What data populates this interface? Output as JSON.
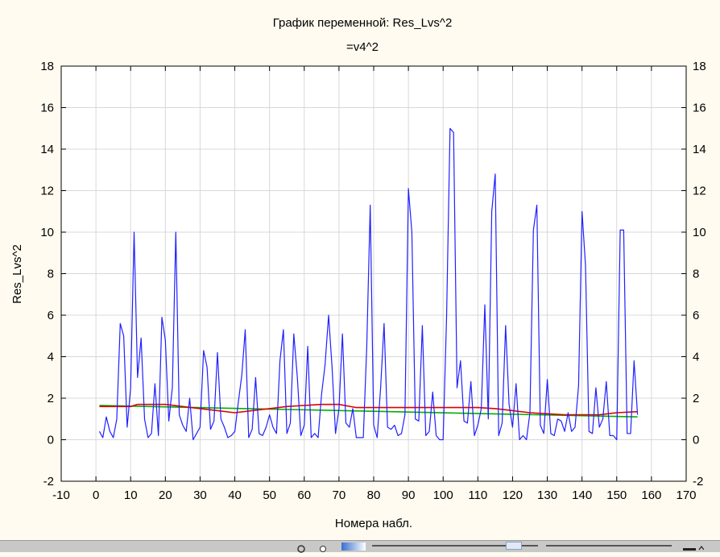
{
  "chart_data": {
    "type": "line",
    "title": "График переменной: Res_Lvs^2",
    "subtitle": "=v4^2",
    "xlabel": "Номера набл.",
    "ylabel": "Res_Lvs^2",
    "xlim": [
      -10,
      170
    ],
    "ylim": [
      -2,
      18
    ],
    "xticks": [
      "-10",
      "0",
      "10",
      "20",
      "30",
      "40",
      "50",
      "60",
      "70",
      "80",
      "90",
      "100",
      "110",
      "120",
      "130",
      "140",
      "150",
      "160",
      "170"
    ],
    "yticks": [
      "-2",
      "0",
      "2",
      "4",
      "6",
      "8",
      "10",
      "12",
      "14",
      "16",
      "18"
    ],
    "grid": true,
    "series": [
      {
        "color": "#2020ff",
        "x": [
          1,
          2,
          3,
          4,
          5,
          6,
          7,
          8,
          9,
          10,
          11,
          12,
          13,
          14,
          15,
          16,
          17,
          18,
          19,
          20,
          21,
          22,
          23,
          24,
          25,
          26,
          27,
          28,
          29,
          30,
          31,
          32,
          33,
          34,
          35,
          36,
          37,
          38,
          39,
          40,
          41,
          42,
          43,
          44,
          45,
          46,
          47,
          48,
          49,
          50,
          51,
          52,
          53,
          54,
          55,
          56,
          57,
          58,
          59,
          60,
          61,
          62,
          63,
          64,
          65,
          66,
          67,
          68,
          69,
          70,
          71,
          72,
          73,
          74,
          75,
          76,
          77,
          78,
          79,
          80,
          81,
          82,
          83,
          84,
          85,
          86,
          87,
          88,
          89,
          90,
          91,
          92,
          93,
          94,
          95,
          96,
          97,
          98,
          99,
          100,
          101,
          102,
          103,
          104,
          105,
          106,
          107,
          108,
          109,
          110,
          111,
          112,
          113,
          114,
          115,
          116,
          117,
          118,
          119,
          120,
          121,
          122,
          123,
          124,
          125,
          126,
          127,
          128,
          129,
          130,
          131,
          132,
          133,
          134,
          135,
          136,
          137,
          138,
          139,
          140,
          141,
          142,
          143,
          144,
          145,
          146,
          147,
          148,
          149,
          150,
          151,
          152,
          153,
          154,
          155,
          156
        ],
        "y": [
          0.4,
          0.1,
          1.1,
          0.4,
          0.1,
          1.0,
          5.6,
          5.0,
          0.6,
          2.5,
          10.0,
          3.0,
          4.9,
          1.0,
          0.1,
          0.3,
          2.7,
          0.2,
          5.9,
          4.8,
          0.9,
          2.5,
          10.0,
          1.2,
          0.7,
          0.4,
          2.0,
          0.0,
          0.3,
          0.6,
          4.3,
          3.5,
          0.5,
          0.9,
          4.2,
          1.0,
          0.6,
          0.1,
          0.2,
          0.4,
          1.8,
          3.1,
          5.3,
          0.1,
          0.5,
          3.0,
          0.3,
          0.2,
          0.6,
          1.2,
          0.6,
          0.3,
          3.8,
          5.3,
          0.3,
          0.8,
          5.1,
          3.0,
          0.2,
          0.7,
          4.5,
          0.1,
          0.3,
          0.1,
          2.2,
          3.6,
          6.0,
          3.5,
          0.3,
          1.5,
          5.1,
          0.8,
          0.6,
          1.5,
          0.1,
          0.1,
          0.1,
          4.5,
          11.3,
          0.7,
          0.1,
          2.5,
          5.6,
          0.6,
          0.5,
          0.7,
          0.2,
          0.3,
          1.2,
          12.1,
          10.0,
          1.0,
          0.9,
          5.5,
          0.2,
          0.4,
          2.3,
          0.2,
          0.0,
          0.0,
          5.9,
          15.0,
          14.8,
          2.5,
          3.8,
          0.9,
          0.8,
          2.8,
          0.2,
          0.7,
          1.5,
          6.5,
          1.0,
          11.0,
          12.8,
          0.2,
          0.8,
          5.5,
          1.7,
          0.6,
          2.7,
          0.0,
          0.2,
          0.0,
          1.3,
          10.1,
          11.3,
          0.7,
          0.3,
          2.9,
          0.3,
          0.2,
          1.0,
          0.9,
          0.4,
          1.3,
          0.4,
          0.6,
          2.6,
          11.0,
          8.4,
          0.4,
          0.3,
          2.5,
          0.6,
          1.0,
          2.8,
          0.2,
          0.2,
          0.0,
          10.1,
          10.1,
          0.3,
          0.3,
          3.8,
          1.2
        ]
      },
      {
        "color": "#e00000",
        "x": [
          1,
          5,
          10,
          12,
          15,
          20,
          25,
          30,
          35,
          40,
          45,
          50,
          55,
          60,
          65,
          70,
          75,
          80,
          85,
          90,
          95,
          100,
          105,
          110,
          115,
          120,
          125,
          130,
          135,
          140,
          145,
          150,
          156
        ],
        "y": [
          1.6,
          1.6,
          1.6,
          1.7,
          1.7,
          1.7,
          1.6,
          1.5,
          1.4,
          1.3,
          1.4,
          1.5,
          1.6,
          1.65,
          1.7,
          1.7,
          1.55,
          1.55,
          1.55,
          1.55,
          1.55,
          1.55,
          1.55,
          1.55,
          1.5,
          1.4,
          1.3,
          1.25,
          1.2,
          1.2,
          1.2,
          1.3,
          1.35
        ]
      },
      {
        "color": "#00b000",
        "x": [
          1,
          156
        ],
        "y": [
          1.65,
          1.1
        ]
      }
    ]
  }
}
